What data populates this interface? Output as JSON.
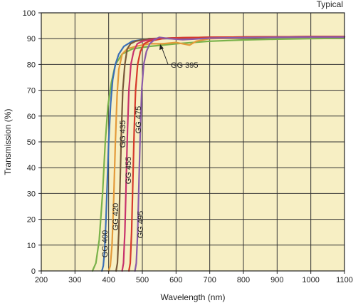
{
  "chart_data": {
    "type": "line",
    "note": "Typical",
    "xlabel": "Wavelength (nm)",
    "ylabel": "Transmission (%)",
    "xlim": [
      200,
      1100
    ],
    "ylim": [
      0,
      100
    ],
    "xticks": [
      200,
      300,
      400,
      500,
      600,
      700,
      800,
      900,
      1000,
      1100
    ],
    "yticks": [
      0,
      10,
      20,
      30,
      40,
      50,
      60,
      70,
      80,
      90,
      100
    ],
    "grid": true,
    "background": "#f7efc4",
    "series": [
      {
        "name": "GG 395",
        "color": "#79b24a",
        "x": [
          352,
          362,
          372,
          382,
          390,
          398,
          408,
          420,
          440,
          470,
          520,
          600,
          700,
          800,
          900,
          1000,
          1100
        ],
        "y": [
          0,
          3,
          12,
          30,
          50,
          64,
          73,
          80,
          84,
          86,
          87,
          88,
          89,
          89.5,
          89.8,
          90,
          90.2
        ]
      },
      {
        "name": "GG 400",
        "color": "#3b6fb6",
        "x": [
          380,
          384,
          388,
          392,
          396,
          400,
          406,
          412,
          420,
          430,
          445,
          470,
          520,
          600,
          700,
          800,
          900,
          1000,
          1100
        ],
        "y": [
          0,
          2,
          8,
          20,
          35,
          50,
          65,
          74,
          80,
          84,
          87,
          89,
          90,
          90,
          90.3,
          90.5,
          90.6,
          90.7,
          90.7
        ]
      },
      {
        "name": "GG 420",
        "color": "#e39a3a",
        "x": [
          400,
          405,
          410,
          415,
          420,
          425,
          430,
          440,
          455,
          480,
          520,
          560,
          600,
          640,
          660,
          700,
          800,
          900,
          1000,
          1100
        ],
        "y": [
          0,
          2,
          10,
          28,
          50,
          68,
          78,
          84,
          86,
          87,
          88,
          88,
          88.5,
          87.5,
          89,
          90,
          90.3,
          90.5,
          90.6,
          90.6
        ]
      },
      {
        "name": "GG 435",
        "color": "#7a5a3a",
        "x": [
          422,
          426,
          430,
          434,
          438,
          442,
          448,
          455,
          465,
          480,
          520,
          600,
          700,
          800,
          900,
          1000,
          1100
        ],
        "y": [
          0,
          3,
          15,
          35,
          55,
          70,
          80,
          86,
          88,
          89,
          90,
          90.3,
          90.5,
          90.6,
          90.7,
          90.8,
          90.8
        ]
      },
      {
        "name": "GG 455",
        "color": "#c8336c",
        "x": [
          440,
          444,
          448,
          452,
          456,
          460,
          466,
          474,
          485,
          500,
          540,
          600,
          700,
          800,
          900,
          1000,
          1100
        ],
        "y": [
          0,
          3,
          15,
          35,
          55,
          70,
          80,
          85,
          88,
          89,
          90,
          90.3,
          90.5,
          90.6,
          90.7,
          90.8,
          90.8
        ]
      },
      {
        "name": "GG 475",
        "color": "#d63a2b",
        "x": [
          460,
          464,
          468,
          472,
          476,
          480,
          486,
          494,
          505,
          520,
          560,
          600,
          700,
          800,
          900,
          1000,
          1100
        ],
        "y": [
          0,
          3,
          15,
          35,
          55,
          70,
          80,
          85,
          88,
          89,
          90,
          90.3,
          90.5,
          90.6,
          90.7,
          90.8,
          90.8
        ]
      },
      {
        "name": "GG 495",
        "color": "#8a5aa8",
        "x": [
          478,
          482,
          486,
          490,
          494,
          498,
          504,
          512,
          522,
          535,
          550,
          580,
          620,
          700,
          800,
          900,
          1000,
          1100
        ],
        "y": [
          0,
          3,
          15,
          35,
          55,
          70,
          80,
          85,
          88,
          89.5,
          90.5,
          90,
          89.6,
          90.2,
          90.4,
          90.5,
          90.6,
          90.6
        ]
      }
    ]
  }
}
